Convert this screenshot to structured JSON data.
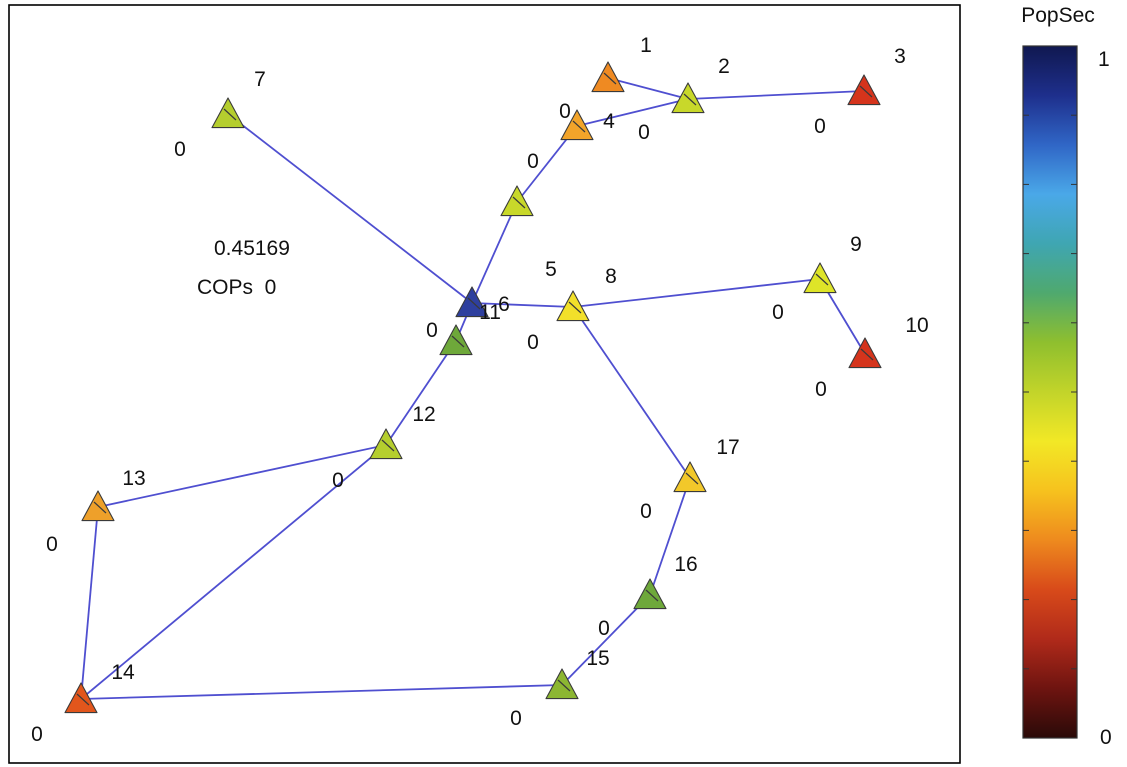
{
  "figure": {
    "annotation": {
      "value": "0.45169",
      "cops_text": "COPs  0"
    },
    "colorbar": {
      "title": "PopSec",
      "max_label": "1",
      "min_label": "0",
      "range": [
        0,
        1
      ],
      "colormap": [
        "#2a0a08",
        "#6e1410",
        "#b02a1a",
        "#d84a1a",
        "#ee8a1e",
        "#f6c21e",
        "#f2e826",
        "#c2d42a",
        "#8fbf2e",
        "#4fa96e",
        "#3fa6b2",
        "#4aa8e8",
        "#3066c6",
        "#1e2f8c",
        "#101850"
      ]
    },
    "network": {
      "nodes": [
        {
          "id": "1",
          "value_label": "",
          "popsec": 0.31,
          "color": "#ef8a22"
        },
        {
          "id": "2",
          "value_label": "0",
          "popsec": 0.5,
          "color": "#c8d82a"
        },
        {
          "id": "3",
          "value_label": "0",
          "popsec": 0.17,
          "color": "#d5341c"
        },
        {
          "id": "4",
          "value_label": "0",
          "popsec": 0.36,
          "color": "#f2a42a"
        },
        {
          "id": "5",
          "value_label": "0",
          "popsec": 0.5,
          "color": "#c8d82a"
        },
        {
          "id": "6",
          "value_label": "0",
          "popsec": 0.55,
          "color": "#6ea83a"
        },
        {
          "id": "7",
          "value_label": "0",
          "popsec": 0.5,
          "color": "#b5ce2e"
        },
        {
          "id": "8",
          "value_label": "0",
          "popsec": 0.43,
          "color": "#f2e02a"
        },
        {
          "id": "9",
          "value_label": "0",
          "popsec": 0.46,
          "color": "#dee428"
        },
        {
          "id": "10",
          "value_label": "0",
          "popsec": 0.2,
          "color": "#d5341c"
        },
        {
          "id": "11",
          "value_label": "",
          "popsec": 0.97,
          "color": "#2e3f9e"
        },
        {
          "id": "12",
          "value_label": "0",
          "popsec": 0.5,
          "color": "#b5ce2e"
        },
        {
          "id": "13",
          "value_label": "0",
          "popsec": 0.34,
          "color": "#eea02a"
        },
        {
          "id": "14",
          "value_label": "0",
          "popsec": 0.24,
          "color": "#e2561c"
        },
        {
          "id": "15",
          "value_label": "0",
          "popsec": 0.55,
          "color": "#8cb632"
        },
        {
          "id": "16",
          "value_label": "0",
          "popsec": 0.56,
          "color": "#6ea83a"
        },
        {
          "id": "17",
          "value_label": "0",
          "popsec": 0.41,
          "color": "#f2c82a"
        }
      ],
      "edges": [
        [
          "1",
          "2"
        ],
        [
          "2",
          "3"
        ],
        [
          "2",
          "4"
        ],
        [
          "4",
          "5"
        ],
        [
          "5",
          "11"
        ],
        [
          "7",
          "11"
        ],
        [
          "11",
          "8"
        ],
        [
          "8",
          "9"
        ],
        [
          "9",
          "10"
        ],
        [
          "8",
          "17"
        ],
        [
          "17",
          "16"
        ],
        [
          "16",
          "15"
        ],
        [
          "15",
          "14"
        ],
        [
          "14",
          "13"
        ],
        [
          "13",
          "12"
        ],
        [
          "12",
          "6"
        ],
        [
          "6",
          "11"
        ],
        [
          "12",
          "14"
        ]
      ]
    }
  }
}
